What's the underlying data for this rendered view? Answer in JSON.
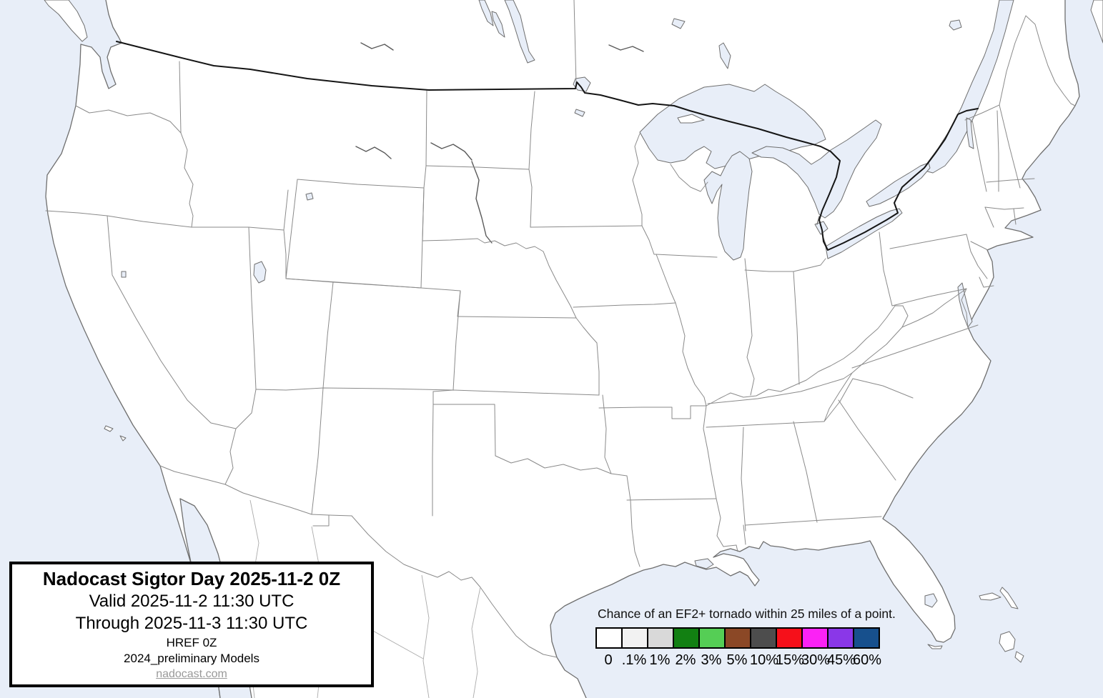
{
  "title_box": {
    "title": "Nadocast Sigtor Day 2025-11-2 0Z",
    "valid_line": "Valid 2025-11-2 11:30 UTC",
    "through_line": "Through 2025-11-3 11:30 UTC",
    "model_line": "HREF 0Z",
    "models_note": "2024_preliminary Models",
    "website": "nadocast.com"
  },
  "legend": {
    "caption": "Chance of an EF2+ tornado within 25 miles of a point.",
    "bins": [
      {
        "label": "0",
        "color": "#ffffff"
      },
      {
        "label": ".1%",
        "color": "#f2f2f2"
      },
      {
        "label": "1%",
        "color": "#d9d9d9"
      },
      {
        "label": "2%",
        "color": "#128012"
      },
      {
        "label": "3%",
        "color": "#55ce55"
      },
      {
        "label": "5%",
        "color": "#8b4826"
      },
      {
        "label": "10%",
        "color": "#4d4d4d"
      },
      {
        "label": "15%",
        "color": "#f6101a"
      },
      {
        "label": "30%",
        "color": "#fb22f5"
      },
      {
        "label": "45%",
        "color": "#8a37e8"
      },
      {
        "label": "60%",
        "color": "#17508d"
      }
    ]
  },
  "map": {
    "description": "Blank CONUS forecast map - no tornado probability contours plotted",
    "colors": {
      "water": "#e8eef8",
      "land": "#ffffff",
      "coastline": "#6f6f6f",
      "state_border": "#8a8a8a",
      "national_border": "#151515",
      "mexico_internal": "#ababab",
      "river": "#5a5a5a"
    }
  }
}
